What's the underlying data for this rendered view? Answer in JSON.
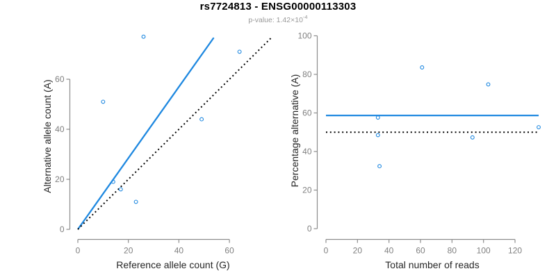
{
  "header": {
    "title": "rs7724813 - ENSG00000113303",
    "subtitle_prefix": "p-value: 1.42×10",
    "subtitle_exponent": "-4"
  },
  "colors": {
    "accent_blue": "#1E88E0",
    "line_black": "#000000",
    "axis_line_gray": "#8C8C8C",
    "tick_label_gray": "#7F7F7F",
    "axis_title_color": "#262626",
    "title_color": "#000000",
    "subtitle_gray": "#999999"
  },
  "chart_data": [
    {
      "id": "allele-counts",
      "type": "scatter",
      "xlabel": "Reference allele count (G)",
      "ylabel": "Alternative allele count (A)",
      "xlim": [
        -3,
        79
      ],
      "ylim": [
        -3,
        79
      ],
      "xticks": [
        0,
        20,
        40,
        60
      ],
      "yticks": [
        0,
        20,
        40,
        60
      ],
      "grid": false,
      "marker": "open-circle",
      "points": [
        {
          "x": 10,
          "y": 51
        },
        {
          "x": 26,
          "y": 77
        },
        {
          "x": 14,
          "y": 19
        },
        {
          "x": 17,
          "y": 16
        },
        {
          "x": 49,
          "y": 44
        },
        {
          "x": 64,
          "y": 71
        },
        {
          "x": 23,
          "y": 11
        }
      ],
      "lines": [
        {
          "name": "fit-line",
          "style": "solid",
          "color_key": "accent_blue",
          "x1": 0,
          "y1": 0,
          "x2": 53.8,
          "y2": 76.6
        },
        {
          "name": "identity-line",
          "style": "dotted",
          "color_key": "line_black",
          "x1": 0,
          "y1": 0,
          "x2": 76.5,
          "y2": 76.5
        }
      ]
    },
    {
      "id": "percentage-alternative",
      "type": "scatter",
      "xlabel": "Total number of reads",
      "ylabel": "Percentage alternative (A)",
      "xlim": [
        -5,
        140
      ],
      "ylim": [
        -4,
        104
      ],
      "xticks": [
        0,
        20,
        40,
        60,
        80,
        100,
        120
      ],
      "yticks": [
        0,
        20,
        40,
        60,
        80,
        100
      ],
      "grid": false,
      "marker": "open-circle",
      "points": [
        {
          "x": 61,
          "y": 83.6
        },
        {
          "x": 103,
          "y": 74.8
        },
        {
          "x": 33,
          "y": 57.6
        },
        {
          "x": 33,
          "y": 48.5
        },
        {
          "x": 93,
          "y": 47.3
        },
        {
          "x": 135,
          "y": 52.6
        },
        {
          "x": 34,
          "y": 32.4
        }
      ],
      "lines": [
        {
          "name": "mean-percentage-line",
          "style": "solid",
          "color_key": "accent_blue",
          "x1": 0,
          "y1": 58.7,
          "x2": 135,
          "y2": 58.7
        },
        {
          "name": "null-50-percent-line",
          "style": "dotted",
          "color_key": "line_black",
          "x1": 0,
          "y1": 50,
          "x2": 135,
          "y2": 50
        }
      ]
    }
  ]
}
